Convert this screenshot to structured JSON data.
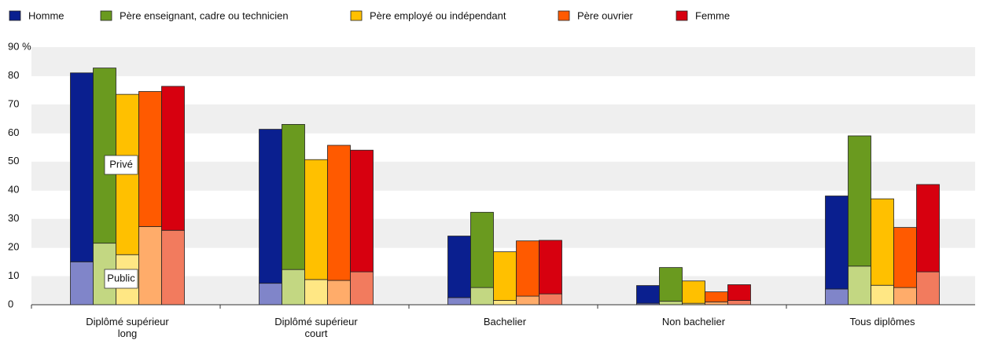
{
  "chart_data": {
    "type": "stacked_grouped_bar",
    "categories": [
      "Diplômé supérieur long",
      "Diplômé supérieur court",
      "Bachelier",
      "Non bachelier",
      "Tous diplômes"
    ],
    "stack_labels": [
      "Public",
      "Privé"
    ],
    "series": [
      {
        "name": "Homme",
        "color": "#0a1f8f",
        "public_color": "#8085c9",
        "public": [
          15,
          7.5,
          2.5,
          0.5,
          5.5
        ],
        "private": [
          66,
          53.8,
          21.5,
          6.2,
          32.5
        ]
      },
      {
        "name": "Père enseignant, cadre ou technicien",
        "color": "#6a9a1f",
        "public_color": "#c3d782",
        "public": [
          21.5,
          12.3,
          6,
          1.2,
          13.5
        ],
        "private": [
          61.2,
          50.7,
          26.3,
          11.8,
          45.5
        ]
      },
      {
        "name": "Père employé ou indépendant",
        "color": "#ffc000",
        "public_color": "#ffe784",
        "public": [
          17.5,
          8.8,
          1.5,
          0.5,
          6.8
        ],
        "private": [
          56,
          41.9,
          17,
          7.8,
          30.2
        ]
      },
      {
        "name": "Père ouvrier",
        "color": "#ff5a00",
        "public_color": "#ffac6a",
        "public": [
          27.3,
          8.5,
          3,
          1,
          6
        ],
        "private": [
          47.2,
          47.2,
          19.3,
          3.5,
          21
        ]
      },
      {
        "name": "Femme",
        "color": "#d7000f",
        "public_color": "#f27b5e",
        "public": [
          26,
          11.5,
          3.8,
          1.5,
          11.5
        ],
        "private": [
          50.3,
          42.5,
          18.7,
          5.5,
          30.5
        ]
      }
    ],
    "ylim": [
      0,
      90
    ],
    "yticks": [
      0,
      10,
      20,
      30,
      40,
      50,
      60,
      70,
      80,
      {
        "value": 90,
        "label": "90 %"
      }
    ],
    "grid": true
  }
}
